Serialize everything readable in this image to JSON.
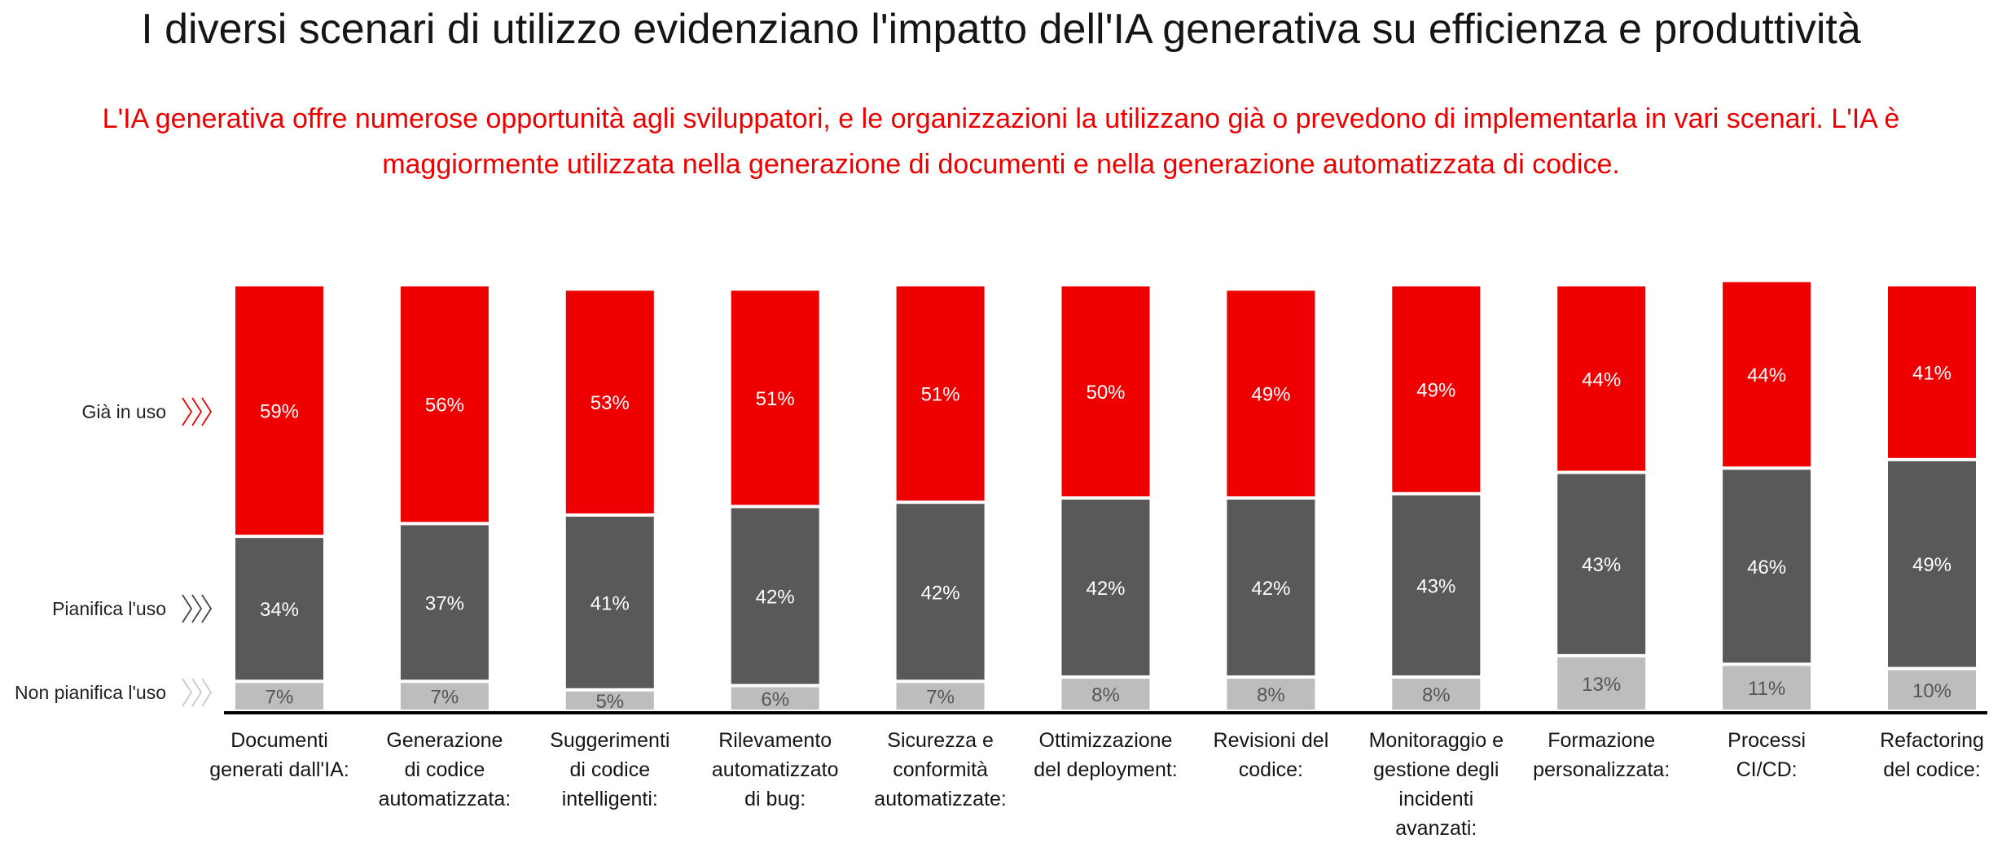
{
  "header": {
    "title": "I diversi scenari di utilizzo evidenziano l'impatto dell'IA generativa su efficienza e produttività",
    "subtitle": "L'IA generativa offre numerose opportunità agli sviluppatori, e le organizzazioni la utilizzano già o prevedono di implementarla in vari scenari. L'IA è maggiormente utilizzata nella generazione di documenti e nella generazione automatizzata di codice."
  },
  "chart_data": {
    "type": "bar",
    "stacked": true,
    "title": "",
    "xlabel": "",
    "ylabel": "",
    "ylim": [
      0,
      100
    ],
    "grid": false,
    "legend_placement": "left",
    "categories": [
      [
        "Documenti",
        "generati dall'IA:"
      ],
      [
        "Generazione",
        "di codice",
        "automatizzata:"
      ],
      [
        "Suggerimenti",
        "di codice",
        "intelligenti:"
      ],
      [
        "Rilevamento",
        "automatizzato",
        "di bug:"
      ],
      [
        "Sicurezza e",
        "conformità",
        "automatizzate:"
      ],
      [
        "Ottimizzazione",
        "del deployment:"
      ],
      [
        "Revisioni del",
        "codice:"
      ],
      [
        "Monitoraggio e",
        "gestione degli",
        "incidenti",
        "avanzati:"
      ],
      [
        "Formazione",
        "personalizzata:"
      ],
      [
        "Processi",
        "CI/CD:"
      ],
      [
        "Refactoring",
        "del codice:"
      ]
    ],
    "series": [
      {
        "name": "Non pianifica l'uso",
        "color": "#bdbdbd",
        "label_color": "#555555",
        "values": [
          7,
          7,
          5,
          6,
          7,
          8,
          8,
          8,
          13,
          11,
          10
        ]
      },
      {
        "name": "Pianifica l'uso",
        "color": "#595959",
        "label_color": "#ffffff",
        "values": [
          34,
          37,
          41,
          42,
          42,
          42,
          42,
          43,
          43,
          46,
          49
        ]
      },
      {
        "name": "Già in uso",
        "color": "#ee0000",
        "label_color": "#ffffff",
        "values": [
          59,
          56,
          53,
          51,
          51,
          50,
          49,
          49,
          44,
          44,
          41
        ]
      }
    ],
    "value_suffix": "%"
  }
}
